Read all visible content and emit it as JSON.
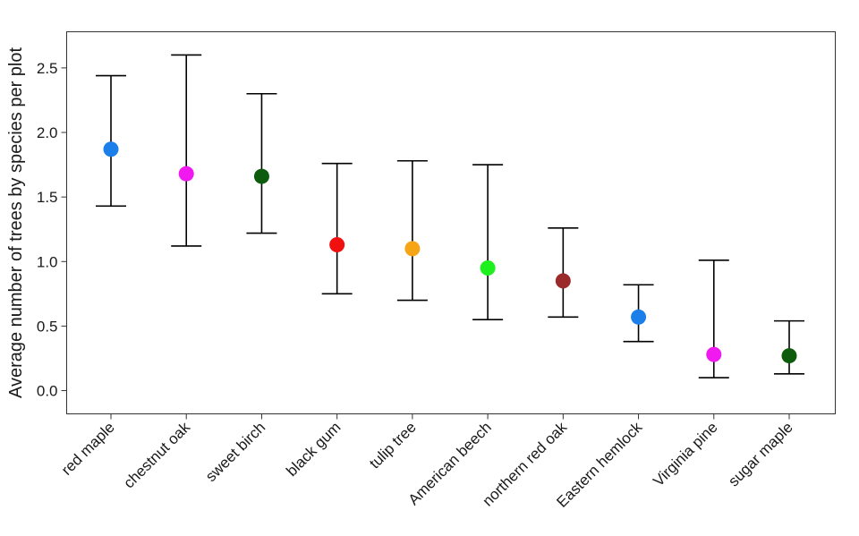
{
  "chart_data": {
    "type": "scatter",
    "title": "",
    "xlabel": "",
    "ylabel": "Average number of trees by species per plot",
    "ylim": [
      -0.18,
      2.78
    ],
    "yticks": [
      "0.0",
      "0.5",
      "1.0",
      "1.5",
      "2.0",
      "2.5"
    ],
    "grid": false,
    "legend": "none",
    "categories": [
      "red maple",
      "chestnut oak",
      "sweet birch",
      "black gum",
      "tulip tree",
      "American beech",
      "northern red oak",
      "Eastern hemlock",
      "Virginia pine",
      "sugar maple"
    ],
    "values": [
      1.87,
      1.68,
      1.66,
      1.13,
      1.1,
      0.95,
      0.85,
      0.57,
      0.28,
      0.27
    ],
    "error_low": [
      1.43,
      1.12,
      1.22,
      0.75,
      0.7,
      0.55,
      0.57,
      0.38,
      0.1,
      0.13
    ],
    "error_high": [
      2.44,
      2.6,
      2.3,
      1.76,
      1.78,
      1.75,
      1.26,
      0.82,
      1.01,
      0.54
    ],
    "colors": [
      "#1a7fe8",
      "#f019f0",
      "#0d5c0d",
      "#f01010",
      "#f5a516",
      "#1ef01e",
      "#9b2a2a",
      "#1a7fe8",
      "#f019f0",
      "#0d5c0d"
    ]
  }
}
